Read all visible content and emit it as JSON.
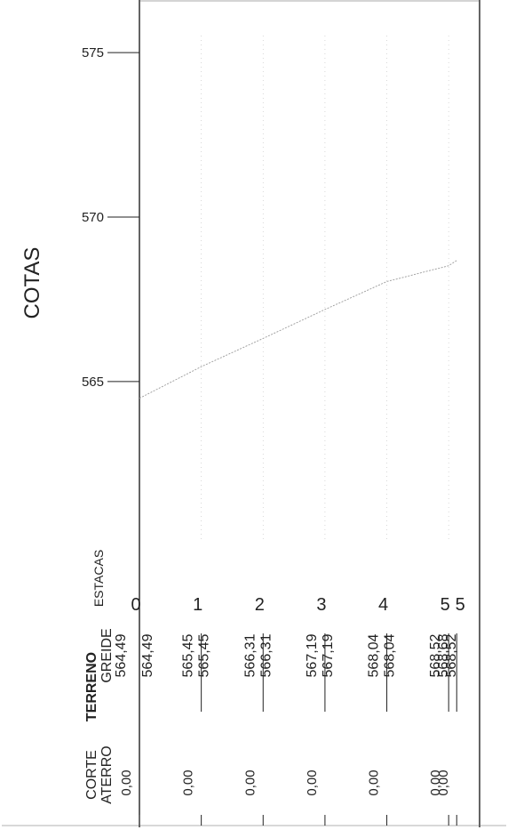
{
  "chart_data": {
    "type": "line",
    "ylabel": "COTAS",
    "yticks": [
      575,
      570,
      565
    ],
    "ylim": [
      560.1,
      576.6
    ],
    "xlim": [
      0,
      5.5
    ],
    "grid": false,
    "x_stations": [
      0,
      1,
      2,
      3,
      4,
      5,
      5.13
    ],
    "station_labels": [
      "0",
      "1",
      "2",
      "3",
      "4",
      "5",
      "5"
    ],
    "series": [
      {
        "x": [
          0,
          1,
          2,
          3,
          4,
          5,
          5.13
        ],
        "values": [
          564.49,
          565.45,
          566.31,
          567.19,
          568.04,
          568.52,
          568.68
        ]
      }
    ],
    "table": {
      "row_labels": {
        "estacas": "ESTACAS",
        "terreno": "TERRENO",
        "greide": "GREIDE",
        "corte": "CORTE",
        "aterro": "ATERRO"
      },
      "terreno": [
        "564,49",
        "565,45",
        "566,31",
        "567,19",
        "568,04",
        "568,52",
        "568,68"
      ],
      "greide": [
        "564,49",
        "565,45",
        "566,31",
        "567,19",
        "568,04",
        "568,52",
        "568,68"
      ],
      "corte_aterro": [
        "0,00",
        "0,00",
        "0,00",
        "0,00",
        "0,00",
        "0,00",
        "0,00"
      ]
    },
    "colors": {
      "frame": "#111111",
      "profile": "#9a9a9a",
      "text": "#222222"
    }
  }
}
